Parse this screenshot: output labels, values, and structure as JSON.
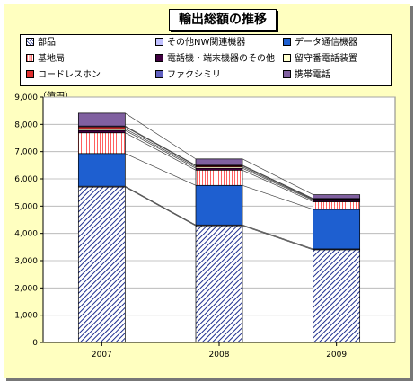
{
  "chart_data": {
    "type": "bar",
    "stacked": true,
    "title": "輸出総額の推移",
    "unit_label": "（億円）",
    "categories": [
      "2007",
      "2008",
      "2009"
    ],
    "ylim": [
      0,
      9000
    ],
    "yticks": [
      "0",
      "1,000",
      "2,000",
      "3,000",
      "4,000",
      "5,000",
      "6,000",
      "7,000",
      "8,000",
      "9,000"
    ],
    "series": [
      {
        "name": "部品",
        "values": [
          5700,
          4280,
          3400
        ],
        "color": "#1f2f8f",
        "fill": "hatch"
      },
      {
        "name": "その他NW関連機器",
        "values": [
          30,
          30,
          30
        ],
        "color": "#c0c0ff",
        "fill": "solid"
      },
      {
        "name": "データ通信機器",
        "values": [
          1200,
          1450,
          1450
        ],
        "color": "#1e5fd0",
        "fill": "solid"
      },
      {
        "name": "基地局",
        "values": [
          760,
          560,
          280
        ],
        "color": "#ff9090",
        "fill": "vlines"
      },
      {
        "name": "電話機・端末機器のその他",
        "values": [
          90,
          70,
          50
        ],
        "color": "#400040",
        "fill": "solid"
      },
      {
        "name": "留守番電話装置",
        "values": [
          60,
          50,
          30
        ],
        "color": "#ffffd0",
        "fill": "solid"
      },
      {
        "name": "コードレスホン",
        "values": [
          70,
          40,
          20
        ],
        "color": "#e03030",
        "fill": "solid"
      },
      {
        "name": "ファクシミリ",
        "values": [
          30,
          20,
          20
        ],
        "color": "#6060c0",
        "fill": "solid"
      },
      {
        "name": "携帯電話",
        "values": [
          470,
          230,
          140
        ],
        "color": "#8060a0",
        "fill": "solid"
      }
    ],
    "grid": true,
    "legend_position": "top"
  }
}
